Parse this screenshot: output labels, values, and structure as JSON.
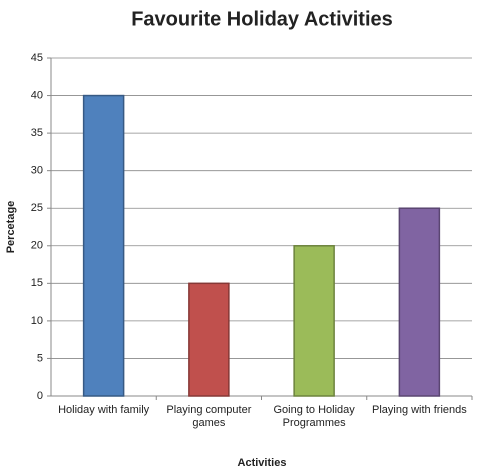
{
  "chart_data": {
    "type": "bar",
    "title": "Favourite Holiday Activities",
    "x_label": "Activities",
    "y_label": "Percetage",
    "categories": [
      "Holiday with family",
      "Playing computer games",
      "Going to Holiday Programmes",
      "Playing with friends"
    ],
    "values": [
      40,
      15,
      20,
      25
    ],
    "colors": [
      "#4f81bd",
      "#c0504d",
      "#9bbb59",
      "#8064a2"
    ],
    "ylim": [
      0,
      45
    ],
    "yticks": [
      0,
      5,
      10,
      15,
      20,
      25,
      30,
      35,
      40,
      45
    ],
    "grid": true
  }
}
